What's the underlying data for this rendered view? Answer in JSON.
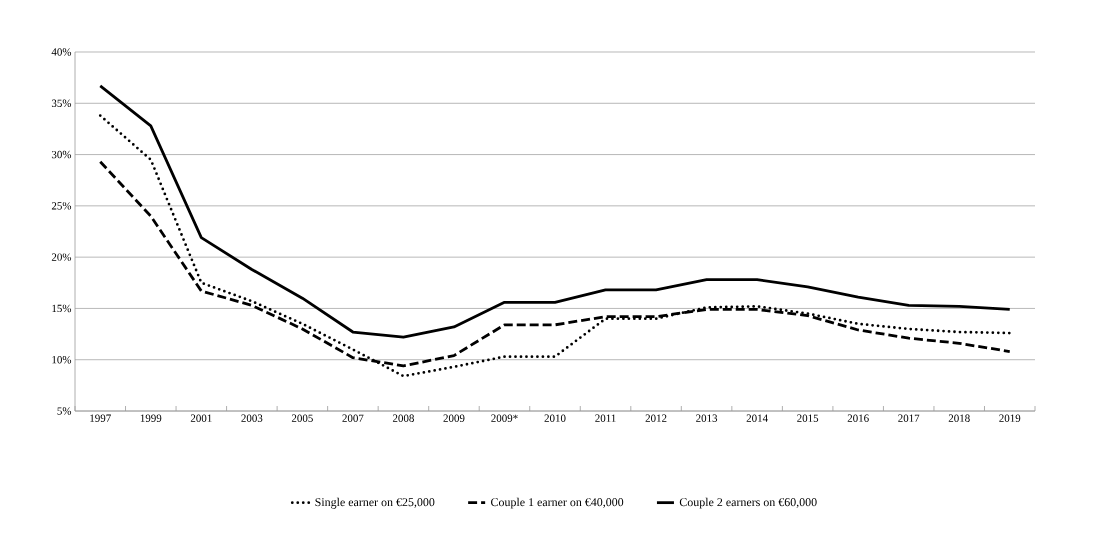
{
  "chart_data": {
    "type": "line",
    "categories": [
      "1997",
      "1999",
      "2001",
      "2003",
      "2005",
      "2007",
      "2008",
      "2009",
      "2009*",
      "2010",
      "2011",
      "2012",
      "2013",
      "2014",
      "2015",
      "2016",
      "2017",
      "2018",
      "2019"
    ],
    "series": [
      {
        "name": "Single earner on €25,000",
        "color": "#000000",
        "line_style": "dotted",
        "values": [
          33.8,
          29.5,
          17.5,
          15.7,
          13.5,
          11.0,
          8.4,
          9.3,
          10.3,
          10.3,
          14.0,
          14.0,
          15.1,
          15.2,
          14.5,
          13.5,
          13.0,
          12.7,
          12.6
        ]
      },
      {
        "name": "Couple 1 earner on €40,000",
        "color": "#000000",
        "line_style": "dashed",
        "values": [
          29.3,
          24.0,
          16.7,
          15.3,
          13.0,
          10.2,
          9.4,
          10.4,
          13.4,
          13.4,
          14.2,
          14.2,
          14.9,
          14.9,
          14.3,
          12.9,
          12.1,
          11.6,
          10.8
        ]
      },
      {
        "name": "Couple 2 earners on €60,000",
        "color": "#000000",
        "line_style": "solid",
        "values": [
          36.7,
          32.8,
          21.9,
          18.8,
          16.0,
          12.7,
          12.2,
          13.2,
          15.6,
          15.6,
          16.8,
          16.8,
          17.8,
          17.8,
          17.1,
          16.1,
          15.3,
          15.2,
          14.9
        ]
      }
    ],
    "ylim": [
      5,
      40
    ],
    "yticks": [
      {
        "value": 5,
        "label": "5%"
      },
      {
        "value": 10,
        "label": "10%"
      },
      {
        "value": 15,
        "label": "15%"
      },
      {
        "value": 20,
        "label": "20%"
      },
      {
        "value": 25,
        "label": "25%"
      },
      {
        "value": 30,
        "label": "30%"
      },
      {
        "value": 35,
        "label": "35%"
      },
      {
        "value": 40,
        "label": "40%"
      }
    ],
    "grid": "y",
    "legend": "bottom",
    "marker": "none"
  }
}
